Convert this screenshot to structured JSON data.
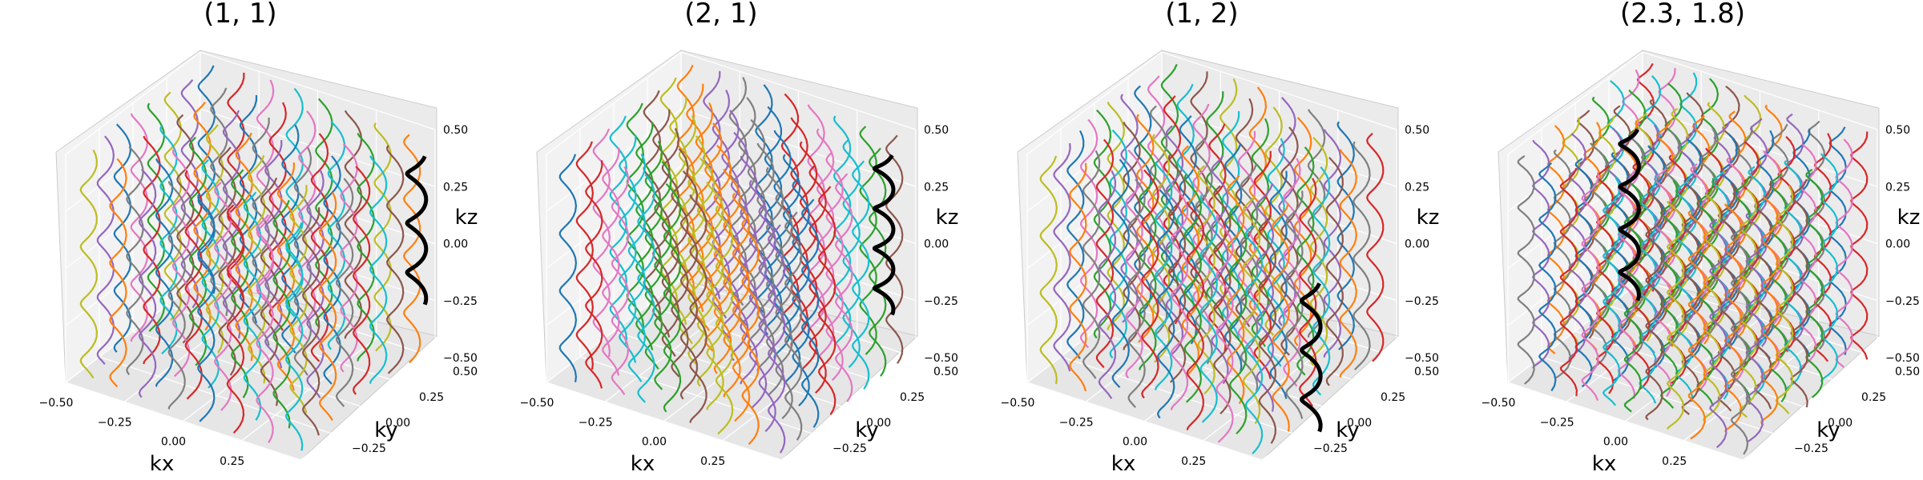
{
  "figure": {
    "chart_data": [
      {
        "type": "line",
        "projection": "3d",
        "title": "(1, 1)",
        "xlabel": "kx",
        "ylabel": "ky",
        "zlabel": "kz",
        "xlim": [
          -0.5,
          0.5
        ],
        "ylim": [
          -0.5,
          0.5
        ],
        "zlim": [
          -0.5,
          0.5
        ],
        "xticks": [
          "−0.50",
          "−0.25",
          "0.00",
          "0.25"
        ],
        "yticks": [
          "−0.25",
          "0.00",
          "0.25",
          "0.50"
        ],
        "zticks": [
          "−0.50",
          "−0.25",
          "0.00",
          "0.25",
          "0.50"
        ],
        "grid": true,
        "trajectory_grid": {
          "nx": 8,
          "ny": 8,
          "amplitude": 0.03,
          "periods": 4,
          "z_range": [
            -0.5,
            0.5
          ]
        },
        "highlight": {
          "kx": 0.45,
          "ky": 0.45,
          "z_range": [
            -0.25,
            0.4
          ],
          "periods": 3,
          "color": "#000000"
        }
      },
      {
        "type": "line",
        "projection": "3d",
        "title": "(2, 1)",
        "xlabel": "kx",
        "ylabel": "ky",
        "zlabel": "kz",
        "xlim": [
          -0.5,
          0.5
        ],
        "ylim": [
          -0.5,
          0.5
        ],
        "zlim": [
          -0.5,
          0.5
        ],
        "xticks": [
          "−0.50",
          "−0.25",
          "0.00",
          "0.25"
        ],
        "yticks": [
          "−0.25",
          "0.00",
          "0.25",
          "0.50"
        ],
        "zticks": [
          "−0.50",
          "−0.25",
          "0.00",
          "0.25",
          "0.50"
        ],
        "grid": true,
        "trajectory_grid": {
          "nx": 9,
          "ny": 8,
          "amplitude": 0.03,
          "periods": 4,
          "z_range": [
            -0.5,
            0.5
          ]
        },
        "highlight": {
          "kx": 0.45,
          "ky": 0.35,
          "z_range": [
            -0.25,
            0.45
          ],
          "periods": 4,
          "color": "#000000"
        }
      },
      {
        "type": "line",
        "projection": "3d",
        "title": "(1, 2)",
        "xlabel": "kx",
        "ylabel": "ky",
        "zlabel": "kz",
        "xlim": [
          -0.5,
          0.5
        ],
        "ylim": [
          -0.5,
          0.5
        ],
        "zlim": [
          -0.5,
          0.5
        ],
        "xticks": [
          "−0.50",
          "−0.25",
          "0.00",
          "0.25"
        ],
        "yticks": [
          "−0.25",
          "0.00",
          "0.25",
          "0.50"
        ],
        "zticks": [
          "−0.50",
          "−0.25",
          "0.00",
          "0.25",
          "0.50"
        ],
        "grid": true,
        "trajectory_grid": {
          "nx": 8,
          "ny": 10,
          "amplitude": 0.03,
          "periods": 4,
          "z_range": [
            -0.5,
            0.5
          ]
        },
        "highlight": {
          "kx": 0.48,
          "ky": -0.1,
          "z_range": [
            -0.55,
            0.1
          ],
          "periods": 3,
          "color": "#000000"
        }
      },
      {
        "type": "line",
        "projection": "3d",
        "title": "(2.3, 1.8)",
        "xlabel": "kx",
        "ylabel": "ky",
        "zlabel": "kz",
        "xlim": [
          -0.5,
          0.5
        ],
        "ylim": [
          -0.5,
          0.5
        ],
        "zlim": [
          -0.5,
          0.5
        ],
        "xticks": [
          "−0.50",
          "−0.25",
          "0.00",
          "0.25"
        ],
        "yticks": [
          "−0.25",
          "0.00",
          "0.25",
          "0.50"
        ],
        "zticks": [
          "−0.50",
          "−0.25",
          "0.00",
          "0.25",
          "0.50"
        ],
        "grid": true,
        "trajectory_grid": {
          "nx": 11,
          "ny": 9,
          "amplitude": 0.03,
          "periods": 5,
          "z_range": [
            -0.5,
            0.5
          ]
        },
        "highlight": {
          "kx": -0.47,
          "ky": 0.35,
          "z_range": [
            -0.5,
            0.25
          ],
          "periods": 4,
          "color": "#000000"
        }
      }
    ],
    "palette": [
      "#1f77b4",
      "#ff7f0e",
      "#2ca02c",
      "#d62728",
      "#9467bd",
      "#8c564b",
      "#e377c2",
      "#7f7f7f",
      "#bcbd22",
      "#17becf"
    ]
  }
}
